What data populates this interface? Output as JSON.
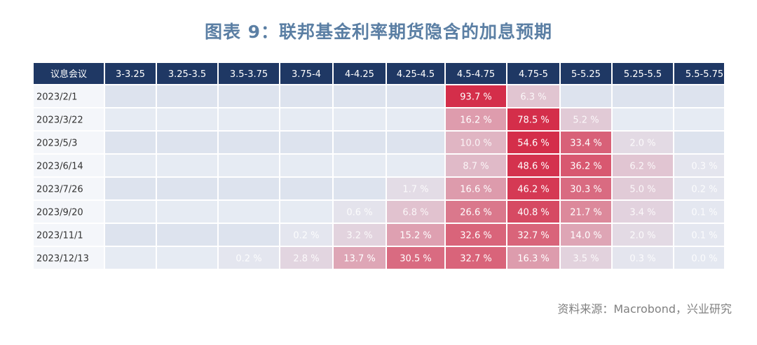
{
  "chart_data": {
    "type": "heatmap",
    "title": "图表 9：联邦基金利率期货隐含的加息预期",
    "corner_label": "议息会议",
    "columns": [
      "3-3.25",
      "3.25-3.5",
      "3.5-3.75",
      "3.75-4",
      "4-4.25",
      "4.25-4.5",
      "4.5-4.75",
      "4.75-5",
      "5-5.25",
      "5.25-5.5",
      "5.5-5.75"
    ],
    "rows": [
      {
        "meeting": "2023/2/1",
        "values": [
          null,
          null,
          null,
          null,
          null,
          null,
          93.7,
          6.3,
          null,
          null,
          null
        ]
      },
      {
        "meeting": "2023/3/22",
        "values": [
          null,
          null,
          null,
          null,
          null,
          null,
          16.2,
          78.5,
          5.2,
          null,
          null
        ]
      },
      {
        "meeting": "2023/5/3",
        "values": [
          null,
          null,
          null,
          null,
          null,
          null,
          10.0,
          54.6,
          33.4,
          2.0,
          null
        ]
      },
      {
        "meeting": "2023/6/14",
        "values": [
          null,
          null,
          null,
          null,
          null,
          null,
          8.7,
          48.6,
          36.2,
          6.2,
          0.3
        ]
      },
      {
        "meeting": "2023/7/26",
        "values": [
          null,
          null,
          null,
          null,
          null,
          1.7,
          16.6,
          46.2,
          30.3,
          5.0,
          0.2
        ]
      },
      {
        "meeting": "2023/9/20",
        "values": [
          null,
          null,
          null,
          null,
          0.6,
          6.8,
          26.6,
          40.8,
          21.7,
          3.4,
          0.1
        ]
      },
      {
        "meeting": "2023/11/1",
        "values": [
          null,
          null,
          null,
          0.2,
          3.2,
          15.2,
          32.6,
          32.7,
          14.0,
          2.0,
          0.1
        ]
      },
      {
        "meeting": "2023/12/13",
        "values": [
          null,
          null,
          0.2,
          2.8,
          13.7,
          30.5,
          32.7,
          16.3,
          3.5,
          0.3,
          0.0
        ]
      }
    ],
    "unit_suffix": " %",
    "colors": {
      "header_bg": "#1f3864",
      "header_text": "#ffffff",
      "empty_cell": "#dde3ee",
      "empty_cell_alt": "#e6ebf3",
      "high": "#d42e4a",
      "low": "#e4e8f1"
    }
  },
  "source_note": "资料来源：Macrobond，兴业研究"
}
